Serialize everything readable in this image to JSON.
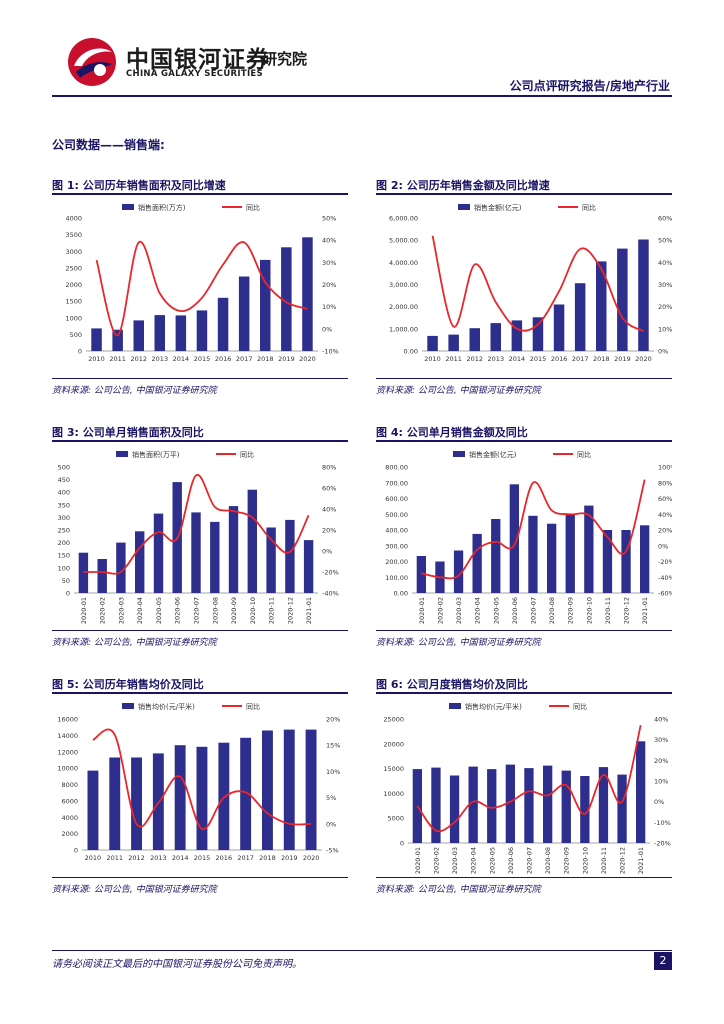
{
  "header": {
    "company_cn": "中国银河证券",
    "company_en": "CHINA GALAXY SECURITIES",
    "institute": "研究院",
    "report_type": "公司点评研究报告/房地产行业"
  },
  "section_title": "公司数据——销售端:",
  "source_text": "资料来源: 公司公告, 中国银河证券研究院",
  "footer": {
    "disclaimer": "请务必阅读正文最后的中国银河证券股份公司免责声明。",
    "page": "2"
  },
  "colors": {
    "bar": "#2e2e8c",
    "line": "#e8262b",
    "accent": "#1b1464"
  },
  "chart_data": [
    {
      "id": "fig1",
      "title": "图 1: 公司历年销售面积及同比增速",
      "type": "bar",
      "categories": [
        "2010",
        "2011",
        "2012",
        "2013",
        "2014",
        "2015",
        "2016",
        "2017",
        "2018",
        "2019",
        "2020"
      ],
      "series": [
        {
          "name": "销售面积(万方)",
          "type": "bar",
          "axis": "left",
          "values": [
            680,
            640,
            920,
            1080,
            1070,
            1220,
            1600,
            2240,
            2740,
            3120,
            3420
          ]
        },
        {
          "name": "同比",
          "type": "line",
          "axis": "right",
          "values": [
            31,
            -3,
            39,
            16,
            8,
            14,
            29,
            39,
            21,
            12,
            9
          ]
        }
      ],
      "left_ticks": [
        "0",
        "500",
        "1000",
        "1500",
        "2000",
        "2500",
        "3000",
        "3500",
        "4000"
      ],
      "left_range": [
        0,
        4000
      ],
      "right_ticks": [
        "-10%",
        "0%",
        "10%",
        "20%",
        "30%",
        "40%",
        "50%"
      ],
      "right_range": [
        -10,
        50
      ]
    },
    {
      "id": "fig2",
      "title": "图 2: 公司历年销售金额及同比增速",
      "type": "bar",
      "categories": [
        "2010",
        "2011",
        "2012",
        "2013",
        "2014",
        "2015",
        "2016",
        "2017",
        "2018",
        "2019",
        "2020"
      ],
      "series": [
        {
          "name": "销售金额(亿元)",
          "type": "bar",
          "axis": "left",
          "values": [
            680,
            740,
            1030,
            1260,
            1380,
            1520,
            2100,
            3060,
            4040,
            4620,
            5030
          ]
        },
        {
          "name": "同比",
          "type": "line",
          "axis": "right",
          "values": [
            52,
            11,
            39,
            22,
            10,
            12,
            27,
            46,
            37,
            15,
            9
          ]
        }
      ],
      "left_ticks": [
        "0.00",
        "1,000.00",
        "2,000.00",
        "3,000.00",
        "4,000.00",
        "5,000.00",
        "6,000.00"
      ],
      "left_range": [
        0,
        6000
      ],
      "right_ticks": [
        "0%",
        "10%",
        "20%",
        "30%",
        "40%",
        "50%",
        "60%"
      ],
      "right_range": [
        0,
        60
      ]
    },
    {
      "id": "fig3",
      "title": "图 3: 公司单月销售面积及同比",
      "type": "bar",
      "categories": [
        "2020-01",
        "2020-02",
        "2020-03",
        "2020-04",
        "2020-05",
        "2020-06",
        "2020-07",
        "2020-08",
        "2020-09",
        "2020-10",
        "2020-11",
        "2020-12",
        "2021-01"
      ],
      "series": [
        {
          "name": "销售面积(万平)",
          "type": "bar",
          "axis": "left",
          "values": [
            160,
            135,
            200,
            245,
            315,
            440,
            320,
            282,
            345,
            410,
            260,
            290,
            210
          ]
        },
        {
          "name": "同比",
          "type": "line",
          "axis": "right",
          "values": [
            -20,
            -20,
            -20,
            3,
            18,
            12,
            72,
            42,
            38,
            32,
            11,
            -1,
            34
          ]
        }
      ],
      "left_ticks": [
        "0",
        "50",
        "100",
        "150",
        "200",
        "250",
        "300",
        "350",
        "400",
        "450",
        "500"
      ],
      "left_range": [
        0,
        500
      ],
      "right_ticks": [
        "-40%",
        "-20%",
        "0%",
        "20%",
        "40%",
        "60%",
        "80%"
      ],
      "right_range": [
        -40,
        80
      ]
    },
    {
      "id": "fig4",
      "title": "图 4: 公司单月销售金额及同比",
      "type": "bar",
      "categories": [
        "2020-01",
        "2020-02",
        "2020-03",
        "2020-04",
        "2020-05",
        "2020-06",
        "2020-07",
        "2020-08",
        "2020-09",
        "2020-10",
        "2020-11",
        "2020-12",
        "2021-01"
      ],
      "series": [
        {
          "name": "销售金额(亿元)",
          "type": "bar",
          "axis": "left",
          "values": [
            235,
            200,
            270,
            375,
            470,
            690,
            490,
            440,
            505,
            555,
            400,
            400,
            430
          ]
        },
        {
          "name": "同比",
          "type": "line",
          "axis": "right",
          "values": [
            -35,
            -40,
            -38,
            -5,
            5,
            1,
            80,
            45,
            40,
            39,
            11,
            -7,
            84
          ]
        }
      ],
      "left_ticks": [
        "0.00",
        "100.00",
        "200.00",
        "300.00",
        "400.00",
        "500.00",
        "600.00",
        "700.00",
        "800.00"
      ],
      "left_range": [
        0,
        800
      ],
      "right_ticks": [
        "-60%",
        "-40%",
        "-20%",
        "0%",
        "20%",
        "40%",
        "60%",
        "80%",
        "100%"
      ],
      "right_range": [
        -60,
        100
      ]
    },
    {
      "id": "fig5",
      "title": "图 5: 公司历年销售均价及同比",
      "type": "bar",
      "categories": [
        "2010",
        "2011",
        "2012",
        "2013",
        "2014",
        "2015",
        "2016",
        "2017",
        "2018",
        "2019",
        "2020"
      ],
      "series": [
        {
          "name": "销售均价(元/平米)",
          "type": "bar",
          "axis": "left",
          "values": [
            9700,
            11300,
            11300,
            11800,
            12800,
            12600,
            13100,
            13700,
            14600,
            14700,
            14700
          ]
        },
        {
          "name": "同比",
          "type": "line",
          "axis": "right",
          "values": [
            16,
            17,
            0,
            4,
            9,
            -1,
            5,
            6,
            2,
            0,
            0
          ]
        }
      ],
      "left_ticks": [
        "0",
        "2000",
        "4000",
        "6000",
        "8000",
        "10000",
        "12000",
        "14000",
        "16000"
      ],
      "left_range": [
        0,
        16000
      ],
      "right_ticks": [
        "-5%",
        "0%",
        "5%",
        "10%",
        "15%",
        "20%"
      ],
      "right_range": [
        -5,
        20
      ]
    },
    {
      "id": "fig6",
      "title": "图 6: 公司月度销售均价及同比",
      "type": "bar",
      "categories": [
        "2020-01",
        "2020-02",
        "2020-03",
        "2020-04",
        "2020-05",
        "2020-06",
        "2020-07",
        "2020-08",
        "2020-09",
        "2020-10",
        "2020-11",
        "2020-12",
        "2021-01"
      ],
      "series": [
        {
          "name": "销售均价(元/平米)",
          "type": "bar",
          "axis": "left",
          "values": [
            14900,
            15200,
            13600,
            15400,
            14900,
            15800,
            15100,
            15600,
            14600,
            13500,
            15300,
            13800,
            20500
          ]
        },
        {
          "name": "同比",
          "type": "line",
          "axis": "right",
          "values": [
            -2,
            -14,
            -10,
            0,
            -3,
            0,
            5,
            3,
            8,
            -6,
            13,
            0,
            37
          ]
        }
      ],
      "left_ticks": [
        "0",
        "5000",
        "10000",
        "15000",
        "20000",
        "25000"
      ],
      "left_range": [
        0,
        25000
      ],
      "right_ticks": [
        "-20%",
        "-10%",
        "0%",
        "10%",
        "20%",
        "30%",
        "40%"
      ],
      "right_range": [
        -20,
        40
      ]
    }
  ]
}
